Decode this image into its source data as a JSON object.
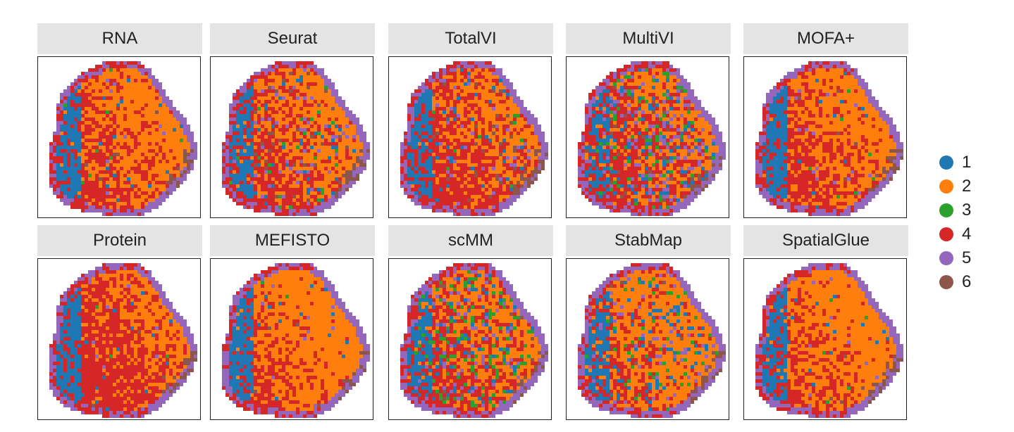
{
  "chart_data": {
    "type": "spatial-scatter",
    "title": "",
    "panels": [
      {
        "name": "RNA",
        "composition": [
          0.1,
          0.38,
          0.03,
          0.4,
          0.07,
          0.02
        ],
        "texture": 0.25,
        "seed": 11
      },
      {
        "name": "Seurat",
        "composition": [
          0.1,
          0.28,
          0.05,
          0.35,
          0.14,
          0.08
        ],
        "texture": 0.55,
        "seed": 23
      },
      {
        "name": "TotalVI",
        "composition": [
          0.1,
          0.22,
          0.03,
          0.45,
          0.1,
          0.1
        ],
        "texture": 0.55,
        "seed": 37
      },
      {
        "name": "MultiVI",
        "composition": [
          0.18,
          0.18,
          0.12,
          0.3,
          0.18,
          0.04
        ],
        "texture": 0.9,
        "seed": 41
      },
      {
        "name": "MOFA+",
        "composition": [
          0.1,
          0.35,
          0.04,
          0.4,
          0.08,
          0.03
        ],
        "texture": 0.25,
        "seed": 53
      },
      {
        "name": "Protein",
        "composition": [
          0.1,
          0.18,
          0.04,
          0.6,
          0.06,
          0.02
        ],
        "texture": 0.2,
        "seed": 67
      },
      {
        "name": "MEFISTO",
        "composition": [
          0.1,
          0.48,
          0.02,
          0.3,
          0.08,
          0.02
        ],
        "texture": 0.2,
        "seed": 71
      },
      {
        "name": "scMM",
        "composition": [
          0.15,
          0.22,
          0.2,
          0.3,
          0.1,
          0.03
        ],
        "texture": 0.85,
        "seed": 83
      },
      {
        "name": "StabMap",
        "composition": [
          0.15,
          0.4,
          0.15,
          0.18,
          0.1,
          0.02
        ],
        "texture": 0.65,
        "seed": 97
      },
      {
        "name": "SpatialGlue",
        "composition": [
          0.1,
          0.45,
          0.04,
          0.3,
          0.08,
          0.03
        ],
        "texture": 0.25,
        "seed": 101
      }
    ],
    "legend": {
      "placement": "right",
      "entries": [
        {
          "label": "1",
          "color": "#1f77b4"
        },
        {
          "label": "2",
          "color": "#ff7f0e"
        },
        {
          "label": "3",
          "color": "#2ca02c"
        },
        {
          "label": "4",
          "color": "#d62728"
        },
        {
          "label": "5",
          "color": "#9467bd"
        },
        {
          "label": "6",
          "color": "#8c564b"
        }
      ]
    }
  }
}
